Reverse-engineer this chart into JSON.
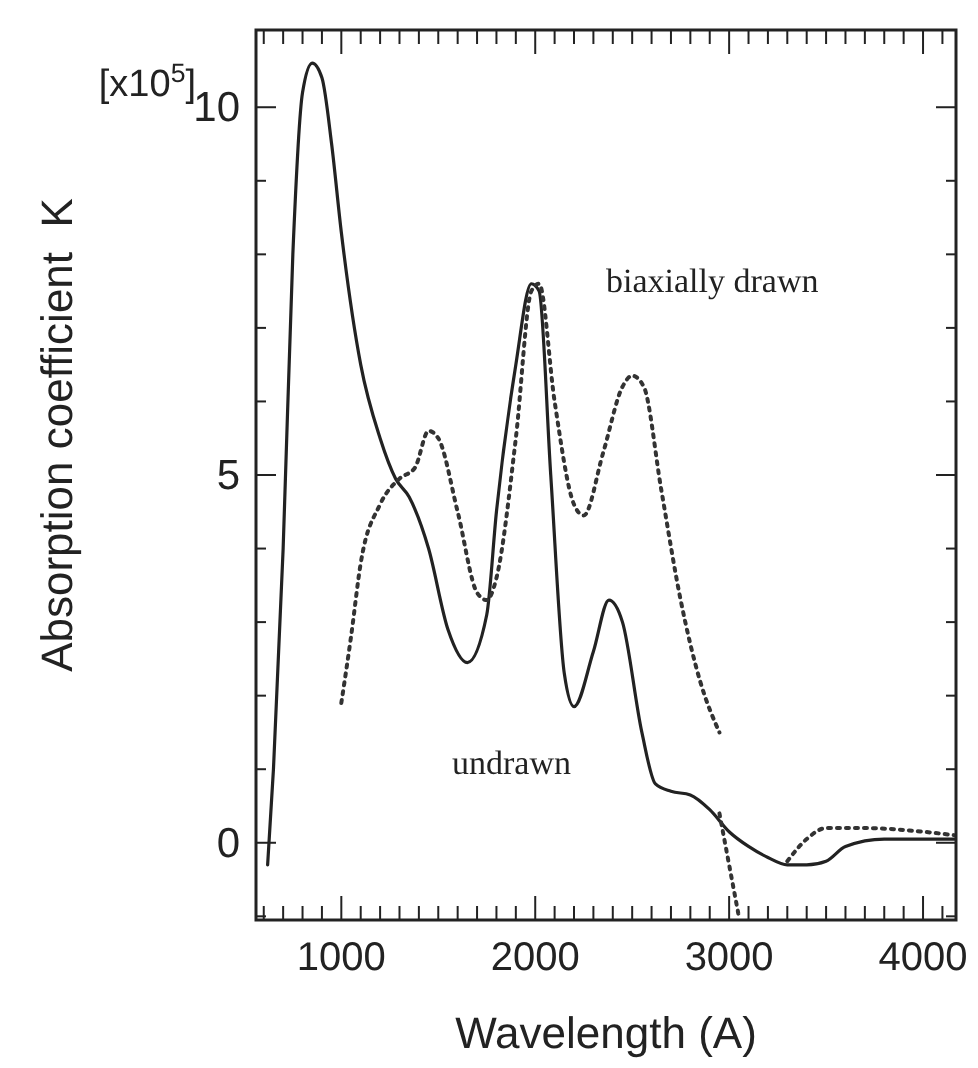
{
  "chart_data": {
    "type": "line",
    "xlabel": "Wavelength (A)",
    "ylabel": "Absorption coefficient  K",
    "xlim": [
      560,
      4170
    ],
    "ylim": [
      -1.05,
      11.05
    ],
    "xticks": [
      {
        "value": 600,
        "label": null
      },
      {
        "value": 700,
        "label": null
      },
      {
        "value": 800,
        "label": null
      },
      {
        "value": 900,
        "label": null
      },
      1000,
      {
        "value": 1100,
        "label": null
      },
      {
        "value": 1200,
        "label": null
      },
      {
        "value": 1300,
        "label": null
      },
      {
        "value": 1400,
        "label": null
      },
      {
        "value": 1500,
        "label": null
      },
      {
        "value": 1600,
        "label": null
      },
      {
        "value": 1700,
        "label": null
      },
      {
        "value": 1800,
        "label": null
      },
      {
        "value": 1900,
        "label": null
      },
      2000,
      {
        "value": 2100,
        "label": null
      },
      {
        "value": 2200,
        "label": null
      },
      {
        "value": 2300,
        "label": null
      },
      {
        "value": 2400,
        "label": null
      },
      {
        "value": 2500,
        "label": null
      },
      {
        "value": 2600,
        "label": null
      },
      {
        "value": 2700,
        "label": null
      },
      {
        "value": 2800,
        "label": null
      },
      {
        "value": 2900,
        "label": null
      },
      3000,
      {
        "value": 3100,
        "label": null
      },
      {
        "value": 3200,
        "label": null
      },
      {
        "value": 3300,
        "label": null
      },
      {
        "value": 3400,
        "label": null
      },
      {
        "value": 3500,
        "label": null
      },
      {
        "value": 3600,
        "label": null
      },
      {
        "value": 3700,
        "label": null
      },
      {
        "value": 3800,
        "label": null
      },
      {
        "value": 3900,
        "label": null
      },
      4000,
      {
        "value": 4100,
        "label": null
      }
    ],
    "yticks": [
      {
        "value": -1,
        "label": null
      },
      0,
      {
        "value": 1,
        "label": null
      },
      {
        "value": 2,
        "label": null
      },
      {
        "value": 3,
        "label": null
      },
      {
        "value": 4,
        "label": null
      },
      5,
      {
        "value": 6,
        "label": null
      },
      {
        "value": 7,
        "label": null
      },
      {
        "value": 8,
        "label": null
      },
      {
        "value": 9,
        "label": null
      },
      10
    ],
    "grid": false,
    "series": [
      {
        "color": "#222222",
        "line_style": "solid",
        "x": [
          620,
          650,
          700,
          750,
          800,
          850,
          900,
          950,
          1000,
          1100,
          1200,
          1280,
          1350,
          1450,
          1550,
          1650,
          1750,
          1800,
          1900,
          1980,
          2020,
          2080,
          2150,
          2200,
          2300,
          2380,
          2450,
          2550,
          2620,
          2700,
          2800,
          2900,
          3000,
          3100,
          3200,
          3300,
          3400,
          3500,
          3600,
          3800,
          4170
        ],
        "values": [
          -0.3,
          1,
          4,
          8,
          10.2,
          10.6,
          10.4,
          9.5,
          8.3,
          6.5,
          5.5,
          4.95,
          4.7,
          4,
          2.9,
          2.45,
          3.1,
          4.5,
          6.5,
          7.6,
          7.5,
          5,
          2.3,
          1.85,
          2.6,
          3.3,
          3,
          1.5,
          0.8,
          0.7,
          0.65,
          0.45,
          0.15,
          -0.05,
          -0.2,
          -0.3,
          -0.3,
          -0.25,
          -0.05,
          0.05,
          0.05
        ]
      },
      {
        "color": "#333333",
        "line_style": "dotted",
        "x": [
          1000,
          1050,
          1100,
          1200,
          1300,
          1380,
          1450,
          1500,
          1600,
          1700,
          1750,
          1800,
          1900,
          1980,
          2020,
          2100,
          2200,
          2250,
          2350,
          2450,
          2500,
          2560,
          2650,
          2750,
          2850,
          2950,
          3100,
          3300,
          3400,
          3500,
          3700,
          4000,
          4170
        ],
        "values": [
          1.9,
          2.8,
          3.8,
          4.6,
          4.95,
          5.1,
          5.6,
          5.5,
          4.5,
          3.4,
          3.3,
          3.6,
          5.5,
          7.5,
          7.6,
          6,
          4.6,
          4.45,
          5.3,
          6.2,
          6.35,
          6.2,
          4.8,
          3.3,
          2.2,
          1.5,
          null,
          -0.25,
          0.05,
          0.2,
          0.2,
          0.15,
          0.1
        ]
      },
      {
        "color": "#333333",
        "line_style": "dotted",
        "x": [
          2950,
          3000,
          3050
        ],
        "values": [
          0.4,
          -0.3,
          -1
        ]
      }
    ],
    "annotations": [
      "[x10$^{5}$]",
      "biaxially drawn",
      "undrawn"
    ]
  }
}
